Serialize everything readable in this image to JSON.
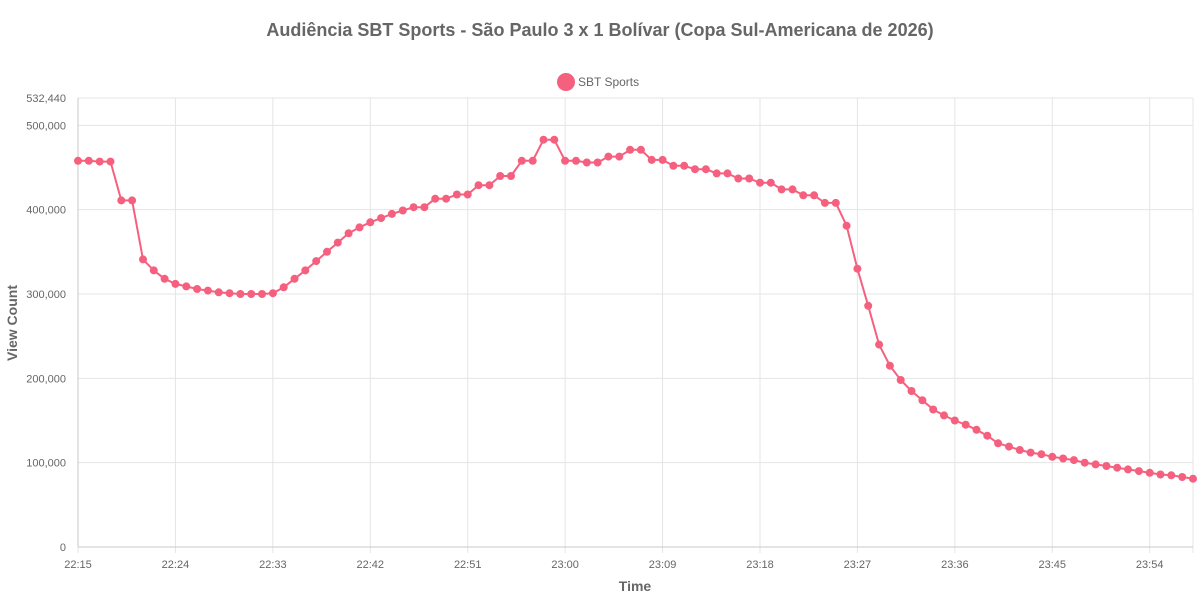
{
  "chart_data": {
    "type": "line",
    "title": "Audiência SBT Sports - São Paulo 3 x 1 Bolívar (Copa Sul-Americana de 2026)",
    "xlabel": "Time",
    "ylabel": "View Count",
    "ylim": [
      0,
      532440
    ],
    "y_ticks": [
      "0",
      "100,000",
      "200,000",
      "300,000",
      "400,000",
      "500,000",
      "532,440"
    ],
    "y_tick_values": [
      0,
      100000,
      200000,
      300000,
      400000,
      500000,
      532440
    ],
    "x_ticks": [
      "22:15",
      "22:24",
      "22:33",
      "22:42",
      "22:51",
      "23:00",
      "23:09",
      "23:18",
      "23:27",
      "23:36",
      "23:45",
      "23:54"
    ],
    "x_tick_values": [
      0,
      9,
      18,
      27,
      36,
      45,
      54,
      63,
      72,
      81,
      90,
      99
    ],
    "xlim": [
      0,
      103
    ],
    "grid": true,
    "legend_position": "top",
    "series": [
      {
        "name": "SBT Sports",
        "color": "#f5607f",
        "x": [
          0,
          1,
          2,
          3,
          4,
          5,
          6,
          7,
          8,
          9,
          10,
          11,
          12,
          13,
          14,
          15,
          16,
          17,
          18,
          19,
          20,
          21,
          22,
          23,
          24,
          25,
          26,
          27,
          28,
          29,
          30,
          31,
          32,
          33,
          34,
          35,
          36,
          37,
          38,
          39,
          40,
          41,
          42,
          43,
          44,
          45,
          46,
          47,
          48,
          49,
          50,
          51,
          52,
          53,
          54,
          55,
          56,
          57,
          58,
          59,
          60,
          61,
          62,
          63,
          64,
          65,
          66,
          67,
          68,
          69,
          70,
          71,
          72,
          73,
          74,
          75,
          76,
          77,
          78,
          79,
          80,
          81,
          82,
          83,
          84,
          85,
          86,
          87,
          88,
          89,
          90,
          91,
          92,
          93,
          94,
          95,
          96,
          97,
          98,
          99,
          100,
          101,
          102,
          103
        ],
        "values": [
          458000,
          458000,
          457000,
          457000,
          411000,
          411000,
          341000,
          328000,
          318000,
          312000,
          309000,
          306000,
          304000,
          302000,
          301000,
          300000,
          300000,
          300000,
          301000,
          308000,
          318000,
          328000,
          339000,
          350000,
          361000,
          372000,
          379000,
          385000,
          390000,
          395000,
          399000,
          403000,
          403000,
          413000,
          413000,
          418000,
          418000,
          429000,
          429000,
          440000,
          440000,
          458000,
          458000,
          483000,
          483000,
          458000,
          458000,
          456000,
          456000,
          463000,
          463000,
          471000,
          471000,
          459000,
          459000,
          452000,
          452000,
          448000,
          448000,
          443000,
          443000,
          437000,
          437000,
          432000,
          432000,
          424000,
          424000,
          417000,
          417000,
          408000,
          408000,
          381000,
          330000,
          286000,
          240000,
          215000,
          198000,
          185000,
          174000,
          163000,
          156000,
          150000,
          145000,
          139000,
          132000,
          123000,
          119000,
          115000,
          112000,
          110000,
          107000,
          105000,
          103000,
          100000,
          98000,
          96000,
          94000,
          92000,
          90000,
          88000,
          86000,
          85000,
          83000,
          81000
        ]
      }
    ]
  }
}
